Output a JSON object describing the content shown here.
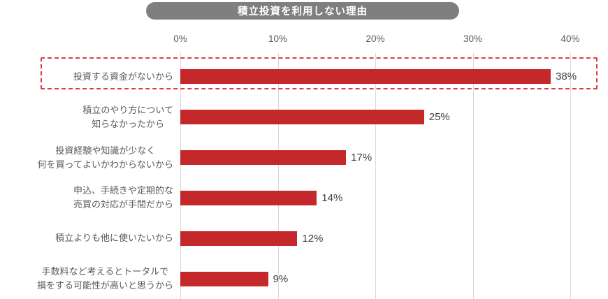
{
  "title": "積立投資を利用しない理由",
  "chart_data": {
    "type": "bar",
    "orientation": "horizontal",
    "title": "積立投資を利用しない理由",
    "categories": [
      "投資する資金がないから",
      "積立のやり方について\n知らなかったから",
      "投資経験や知識が少なく\n何を買ってよいかわからないから",
      "申込、手続きや定期的な\n売買の対応が手間だから",
      "積立よりも他に使いたいから",
      "手数料など考えるとトータルで\n損をする可能性が高いと思うから"
    ],
    "values": [
      38,
      25,
      17,
      14,
      12,
      9
    ],
    "value_labels": [
      "38%",
      "25%",
      "17%",
      "14%",
      "12%",
      "9%"
    ],
    "x_ticks": [
      0,
      10,
      20,
      30,
      40
    ],
    "x_tick_labels": [
      "0%",
      "10%",
      "20%",
      "30%",
      "40%"
    ],
    "xlim": [
      0,
      40
    ],
    "grid": "vertical-gridlines",
    "legend": "none",
    "highlight": {
      "index": 0,
      "style": "red-dashed-outline"
    }
  },
  "colors": {
    "background": "#ffffff",
    "bar": "#c5282b",
    "highlight_border": "#dc3c41",
    "title_bg": "#7f7f7f",
    "title_text": "#ffffff",
    "gridline": "#d9d9d9",
    "axis_text": "#595959",
    "category_text": "#595959",
    "value_text": "#404040"
  }
}
